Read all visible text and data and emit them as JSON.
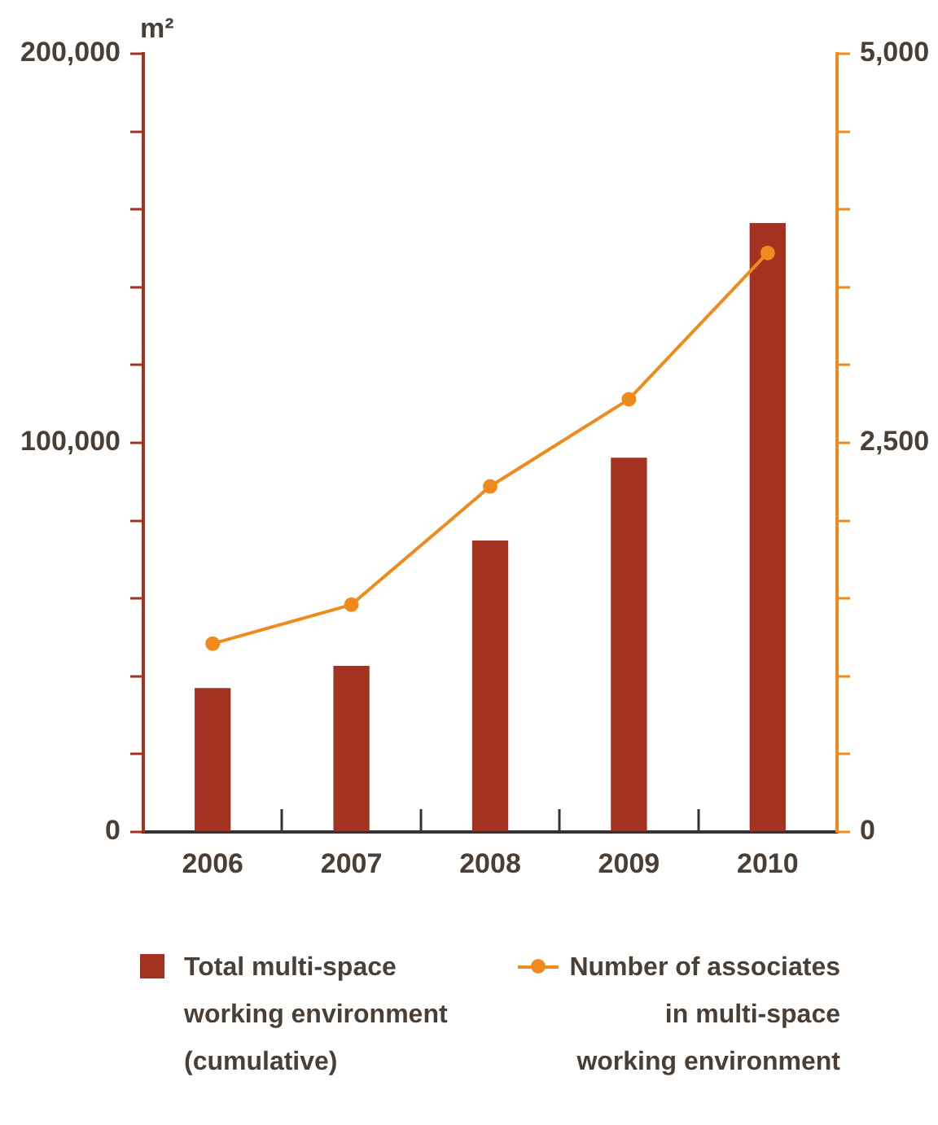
{
  "chart_data": {
    "type": "bar",
    "ylabel": "m²",
    "categories": [
      "2006",
      "2007",
      "2008",
      "2009",
      "2010"
    ],
    "series": [
      {
        "name": "Total multi-space working environment (cumulative)",
        "type": "bar",
        "color": "#a33220",
        "values": [
          37000,
          42700,
          74900,
          96200,
          156500
        ]
      },
      {
        "name": "Number of associates in multi-space working environment",
        "type": "line",
        "axis": "y2",
        "color": "#f08a1c",
        "marker": "circle",
        "values": [
          1210,
          1460,
          2220,
          2780,
          3720
        ]
      }
    ],
    "ylim": [
      0,
      200000
    ],
    "yticks": [
      0,
      {
        "value": 20000,
        "label": null
      },
      {
        "value": 40000,
        "label": null
      },
      {
        "value": 60000,
        "label": null
      },
      {
        "value": 80000,
        "label": null
      },
      {
        "value": 100000,
        "label": "100,000"
      },
      {
        "value": 120000,
        "label": null
      },
      {
        "value": 140000,
        "label": null
      },
      {
        "value": 160000,
        "label": null
      },
      {
        "value": 180000,
        "label": null
      },
      {
        "value": 200000,
        "label": "200,000"
      }
    ],
    "y2lim": [
      0,
      5000
    ],
    "y2ticks": [
      0,
      {
        "value": 500,
        "label": null
      },
      {
        "value": 1000,
        "label": null
      },
      {
        "value": 1500,
        "label": null
      },
      {
        "value": 2000,
        "label": null
      },
      {
        "value": 2500,
        "label": "2,500"
      },
      {
        "value": 3000,
        "label": null
      },
      {
        "value": 3500,
        "label": null
      },
      {
        "value": 4000,
        "label": null
      },
      {
        "value": 4500,
        "label": null
      },
      {
        "value": 5000,
        "label": "5,000"
      }
    ],
    "grid": false,
    "legend": "bottom"
  }
}
